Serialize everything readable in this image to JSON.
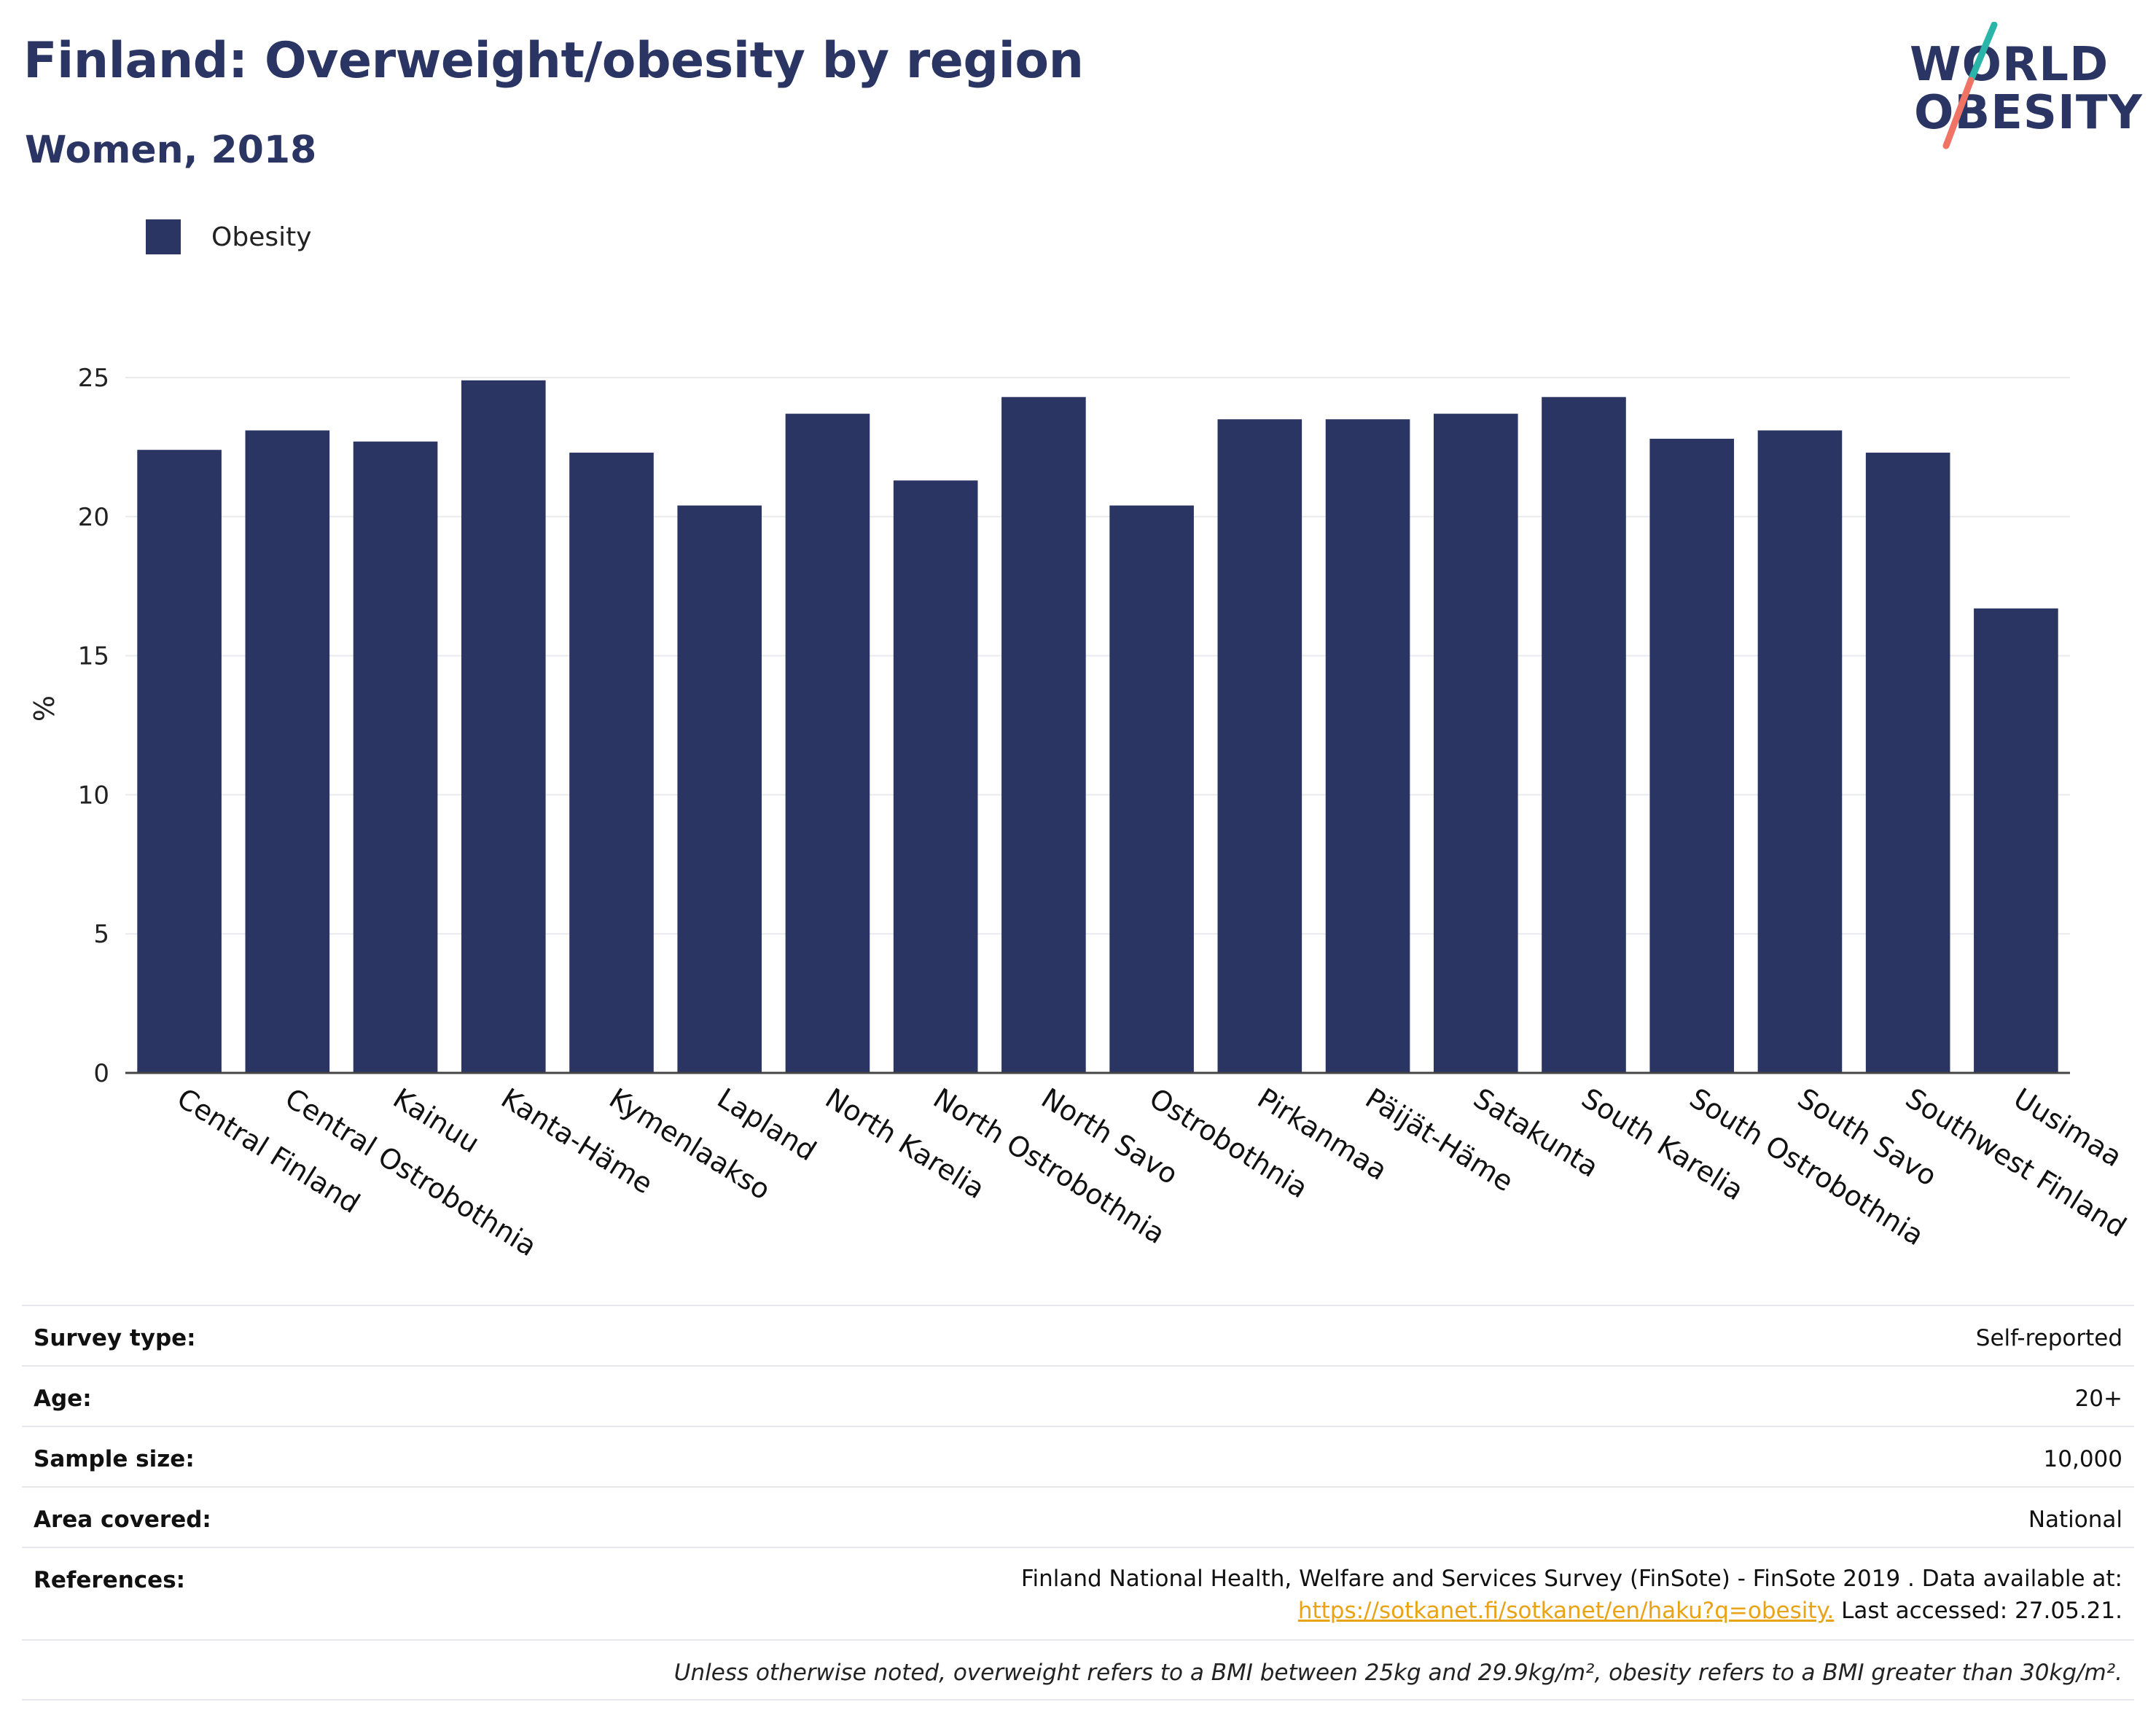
{
  "header": {
    "title": "Finland: Overweight/obesity by region",
    "subtitle": "Women, 2018"
  },
  "logo": {
    "line1": "WORLD",
    "line2": "OBESITY"
  },
  "colors": {
    "bar": "#2b3563",
    "accent_teal": "#2bb5a8",
    "accent_coral": "#f07466",
    "link": "#e8a317"
  },
  "chart_data": {
    "type": "bar",
    "categories": [
      "Central Finland",
      "Central Ostrobothnia",
      "Kainuu",
      "Kanta-Häme",
      "Kymenlaakso",
      "Lapland",
      "North Karelia",
      "North Ostrobothnia",
      "North Savo",
      "Ostrobothnia",
      "Pirkanmaa",
      "Päijät-Häme",
      "Satakunta",
      "South Karelia",
      "South Ostrobothnia",
      "South Savo",
      "Southwest Finland",
      "Uusimaa"
    ],
    "series": [
      {
        "name": "Obesity",
        "values": [
          22.4,
          23.1,
          22.7,
          24.9,
          22.3,
          20.4,
          23.7,
          21.3,
          24.3,
          20.4,
          23.5,
          23.5,
          23.7,
          24.3,
          22.8,
          23.1,
          22.3,
          16.7
        ]
      }
    ],
    "ylabel": "%",
    "yticks": [
      0,
      5,
      10,
      15,
      20,
      25
    ],
    "ylim": [
      0,
      25
    ],
    "grid": true,
    "legend": "top-left"
  },
  "info": {
    "survey_type_label": "Survey type:",
    "survey_type_value": "Self-reported",
    "age_label": "Age:",
    "age_value": "20+",
    "sample_label": "Sample size:",
    "sample_value": "10,000",
    "area_label": "Area covered:",
    "area_value": "National",
    "references_label": "References:",
    "references_text": "Finland National Health, Welfare and Services Survey (FinSote) - FinSote 2019 . Data available at:",
    "references_link": "https://sotkanet.fi/sotkanet/en/haku?q=obesity.",
    "references_accessed": " Last accessed: 27.05.21.",
    "note": "Unless otherwise noted, overweight refers to a BMI between 25kg and 29.9kg/m², obesity refers to a BMI greater than 30kg/m²."
  }
}
